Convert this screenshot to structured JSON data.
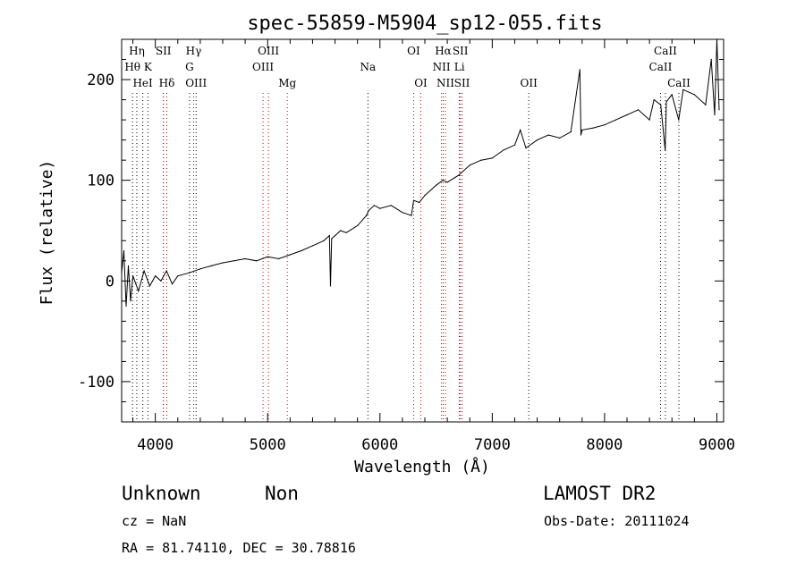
{
  "chart_data": {
    "type": "line",
    "title": "spec-55859-M5904_sp12-055.fits",
    "xlabel": "Wavelength (Å)",
    "ylabel": "Flux (relative)",
    "xlim": [
      3700,
      9060
    ],
    "ylim": [
      -140,
      240
    ],
    "xticks": [
      4000,
      5000,
      6000,
      7000,
      8000,
      9000
    ],
    "yticks": [
      -100,
      0,
      100,
      200
    ],
    "grid": false,
    "series": [
      {
        "values_x": [
          3700,
          3720,
          3740,
          3760,
          3780,
          3800,
          3850,
          3900,
          3950,
          4000,
          4050,
          4100,
          4150,
          4200,
          4300,
          4400,
          4500,
          4600,
          4700,
          4800,
          4900,
          5000,
          5100,
          5200,
          5300,
          5400,
          5500,
          5550,
          5560,
          5570,
          5600,
          5650,
          5700,
          5800,
          5880,
          5900,
          5950,
          6000,
          6100,
          6200,
          6280,
          6300,
          6350,
          6400,
          6500,
          6560,
          6600,
          6700,
          6800,
          6900,
          7000,
          7100,
          7200,
          7250,
          7300,
          7400,
          7500,
          7600,
          7700,
          7780,
          7790,
          7800,
          7900,
          8000,
          8100,
          8200,
          8300,
          8400,
          8440,
          8500,
          8540,
          8550,
          8600,
          8660,
          8700,
          8800,
          8900,
          8950,
          8980,
          9000,
          9020
        ],
        "values_y": [
          8,
          30,
          -25,
          15,
          -20,
          5,
          -10,
          10,
          -5,
          5,
          0,
          10,
          -3,
          5,
          8,
          12,
          15,
          18,
          20,
          22,
          20,
          24,
          22,
          26,
          30,
          35,
          40,
          45,
          -5,
          42,
          45,
          50,
          48,
          55,
          65,
          70,
          75,
          72,
          75,
          68,
          65,
          80,
          78,
          85,
          95,
          100,
          98,
          105,
          115,
          120,
          122,
          130,
          135,
          150,
          132,
          140,
          145,
          142,
          148,
          210,
          145,
          150,
          152,
          155,
          160,
          165,
          170,
          160,
          180,
          175,
          130,
          178,
          185,
          160,
          190,
          185,
          175,
          220,
          165,
          240,
          170
        ]
      }
    ],
    "line_markers": [
      {
        "label": "Hη",
        "x": 3835,
        "row": 0,
        "color": "#000000"
      },
      {
        "label": "Hθ",
        "x": 3797,
        "row": 1,
        "color": "#000000"
      },
      {
        "label": "K",
        "x": 3934,
        "row": 1,
        "color": "#000000"
      },
      {
        "label": "HeI",
        "x": 3888,
        "row": 2,
        "color": "#000000"
      },
      {
        "label": "SII",
        "x": 4072,
        "row": 0,
        "color": "#000000"
      },
      {
        "label": "Hδ",
        "x": 4102,
        "row": 2,
        "color": "#cc0000"
      },
      {
        "label": "Hγ",
        "x": 4341,
        "row": 0,
        "color": "#cc0000"
      },
      {
        "label": "G",
        "x": 4305,
        "row": 1,
        "color": "#000000"
      },
      {
        "label": "OIII",
        "x": 4363,
        "row": 2,
        "color": "#000000"
      },
      {
        "label": "OIII",
        "x": 5007,
        "row": 0,
        "color": "#cc0000"
      },
      {
        "label": "OIII",
        "x": 4959,
        "row": 1,
        "color": "#cc0000"
      },
      {
        "label": "Mg",
        "x": 5175,
        "row": 2,
        "color": "#cc0000"
      },
      {
        "label": "Na",
        "x": 5893,
        "row": 1,
        "color": "#000000"
      },
      {
        "label": "OI",
        "x": 6300,
        "row": 0,
        "color": "#cc0000"
      },
      {
        "label": "OI",
        "x": 6364,
        "row": 2,
        "color": "#cc0000"
      },
      {
        "label": "Hα",
        "x": 6563,
        "row": 0,
        "color": "#cc0000"
      },
      {
        "label": "NII",
        "x": 6548,
        "row": 1,
        "color": "#cc0000"
      },
      {
        "label": "NII",
        "x": 6583,
        "row": 2,
        "color": "#cc0000"
      },
      {
        "label": "SII",
        "x": 6716,
        "row": 0,
        "color": "#cc0000"
      },
      {
        "label": "Li",
        "x": 6708,
        "row": 1,
        "color": "#000000"
      },
      {
        "label": "SII",
        "x": 6731,
        "row": 2,
        "color": "#cc0000"
      },
      {
        "label": "OII",
        "x": 7325,
        "row": 2,
        "color": "#000000"
      },
      {
        "label": "CaII",
        "x": 8542,
        "row": 0,
        "color": "#000000"
      },
      {
        "label": "CaII",
        "x": 8498,
        "row": 1,
        "color": "#000000"
      },
      {
        "label": "CaII",
        "x": 8662,
        "row": 2,
        "color": "#000000"
      }
    ]
  },
  "info": {
    "class": "Unknown",
    "subclass": "Non",
    "survey": "LAMOST DR2",
    "cz": "cz = NaN",
    "obs_date": "Obs-Date: 20111024",
    "coords": "RA =  81.74110, DEC =  30.78816"
  }
}
